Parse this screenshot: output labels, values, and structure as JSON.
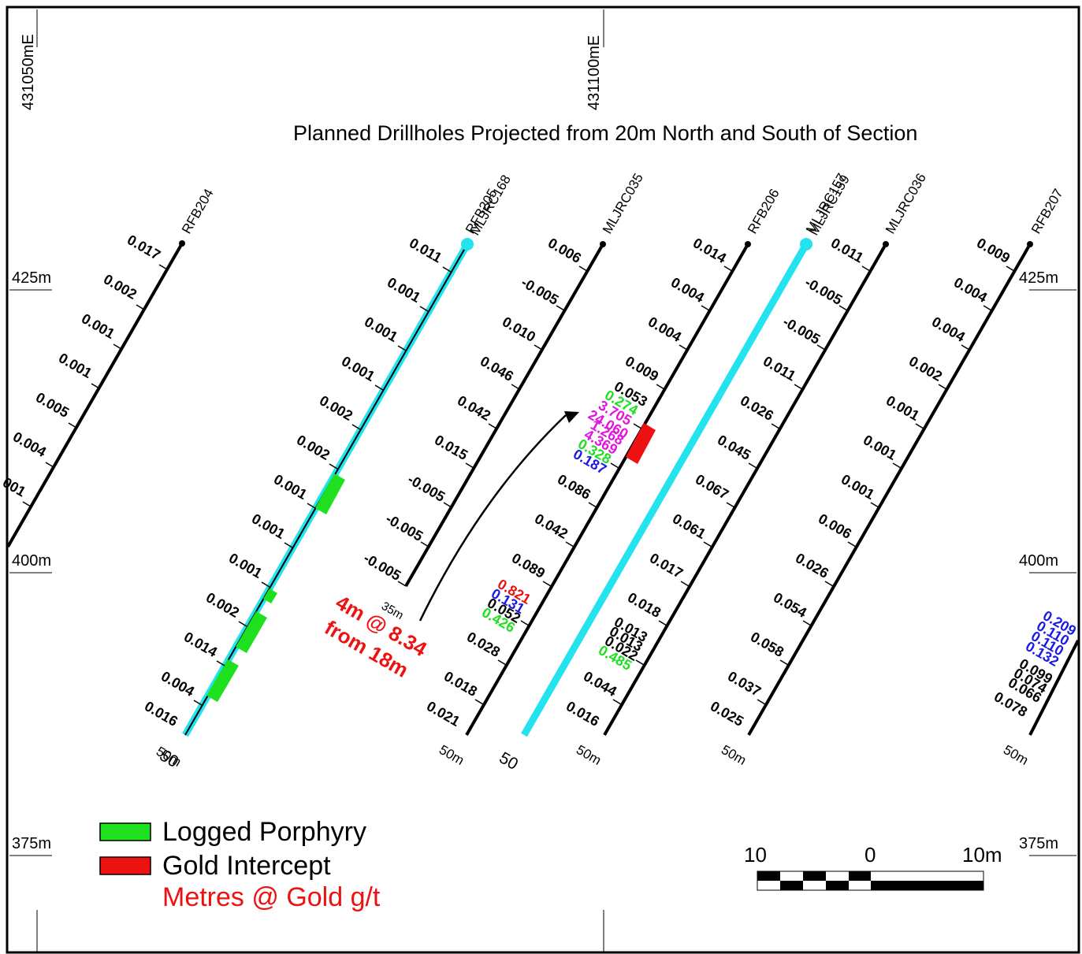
{
  "title": "Planned Drillholes Projected from 20m North and South of Section",
  "eastings": [
    {
      "label": "431050mE"
    },
    {
      "label": "431100mE"
    }
  ],
  "elevations": [
    {
      "label": "425m",
      "left": "425m",
      "right": "425m"
    },
    {
      "label": "400m",
      "left": "400m",
      "right": "400m"
    },
    {
      "label": "375m",
      "left": "375m",
      "right": "375m"
    }
  ],
  "colors": {
    "planned": "#22e3ee",
    "porphyry": "#1fe01f",
    "gold": "#ee1111",
    "magenta": "#e015e0",
    "blue": "#1a1ae6",
    "black": "#000000"
  },
  "holes": [
    {
      "name": "RFB204",
      "assays": [
        "0.017",
        "0.002",
        "0.001",
        "0.001",
        "0.005",
        "0.004",
        "001"
      ],
      "end_label": ""
    },
    {
      "name": "MLJRC168",
      "planned": true,
      "overlap_names": [
        "RFB205",
        "MLJRC168"
      ],
      "assays": [
        "0.011",
        "0.001",
        "0.001",
        "0.001",
        "0.002",
        "0.002",
        "0.001",
        "0.001",
        "0.001",
        "0.002",
        "0.014",
        "0.004",
        "0.016"
      ],
      "end_label": "50",
      "end_label_2": "50m"
    },
    {
      "name": "MLJRC035",
      "assays": [
        "0.006",
        "-0.005",
        "0.010",
        "0.046",
        "0.042",
        "0.015",
        "-0.005",
        "-0.005",
        "-0.005"
      ],
      "end_label": "35m"
    },
    {
      "name": "RFB206",
      "assays": [
        "0.014",
        "0.004",
        "0.004",
        "0.009",
        "0.053",
        "0.274",
        "3.705",
        "24.060",
        "1.268",
        "4.369",
        "0.328",
        "0.187",
        "0.086",
        "0.042",
        "0.089",
        "0.821",
        "0.131",
        "0.052",
        "0.426",
        "0.028",
        "0.018",
        "0.021"
      ],
      "end_label": "50m"
    },
    {
      "name": "MLJRC159",
      "planned": true,
      "overlap_names": [
        "MLJRC157",
        "MLJRC159"
      ],
      "assays": [
        "0.011",
        "-0.005",
        "-0.005",
        "0.011",
        "0.026",
        "0.045",
        "0.067",
        "0.061",
        "0.017",
        "0.018",
        "0.013",
        "0.013",
        "0.022",
        "0.485",
        "0.044",
        "0.016"
      ],
      "end_label": "50",
      "end_label_2": "50m"
    },
    {
      "name": "MLJRC036",
      "assays": [
        "0.006",
        "0.026",
        "0.054",
        "0.058",
        "0.037",
        "0.025"
      ],
      "end_label": "50m"
    },
    {
      "name": "RFB207",
      "assays": [
        "0.009",
        "0.004",
        "0.004",
        "0.002",
        "0.001",
        "0.001",
        "0.001",
        "0.209",
        "0.110",
        "0.110",
        "0.132",
        "0.099",
        "0.074",
        "0.066",
        "0.078"
      ],
      "end_label": "50m"
    }
  ],
  "intercept": {
    "line1": "4m @ 8.34",
    "line2": "from 18m"
  },
  "legend": {
    "porphyry": "Logged Porphyry",
    "gold": "Gold Intercept",
    "metres": "Metres @ Gold g/t"
  },
  "scale": {
    "left": "10",
    "mid": "0",
    "right": "10m"
  }
}
